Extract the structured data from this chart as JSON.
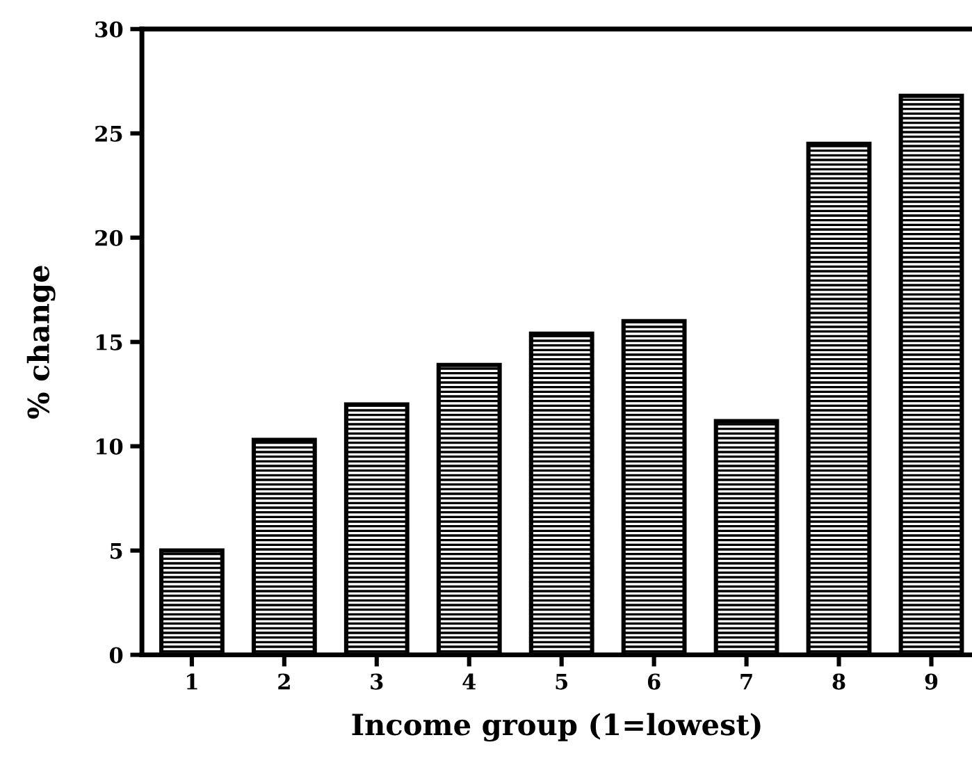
{
  "chart_data": {
    "type": "bar",
    "xlabel": "Income group (1=lowest)",
    "ylabel": "% change",
    "categories": [
      "1",
      "2",
      "3",
      "4",
      "5",
      "6",
      "7",
      "8",
      "9"
    ],
    "values": [
      5.0,
      10.3,
      12.0,
      13.9,
      15.4,
      16.0,
      11.2,
      24.5,
      26.8
    ],
    "color": "#000000",
    "ylim": [
      0,
      30
    ],
    "yticks": [
      0,
      5,
      10,
      15,
      20,
      25,
      30
    ],
    "grid": false
  }
}
